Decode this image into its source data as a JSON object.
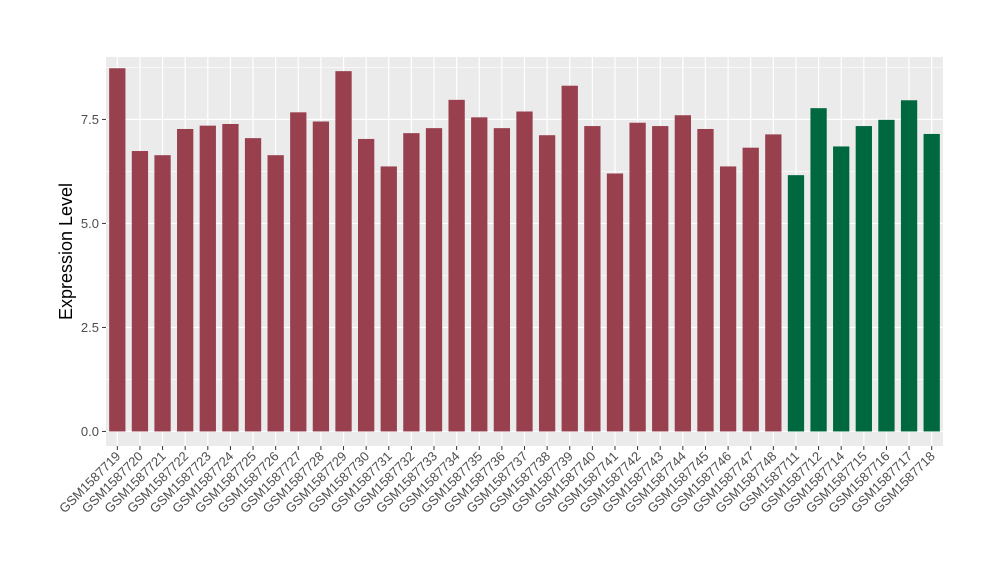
{
  "chart_data": {
    "type": "bar",
    "ylabel": "Expression Level",
    "xlabel": "",
    "ylim": [
      -0.35,
      9.0
    ],
    "yticks": [
      0.0,
      2.5,
      5.0,
      7.5
    ],
    "ytick_labels": [
      "0.0",
      "2.5",
      "5.0",
      "7.5"
    ],
    "grid": true,
    "legend": "none",
    "categories": [
      "GSM1587719",
      "GSM1587720",
      "GSM1587721",
      "GSM1587722",
      "GSM1587723",
      "GSM1587724",
      "GSM1587725",
      "GSM1587726",
      "GSM1587727",
      "GSM1587728",
      "GSM1587729",
      "GSM1587730",
      "GSM1587731",
      "GSM1587732",
      "GSM1587733",
      "GSM1587734",
      "GSM1587735",
      "GSM1587736",
      "GSM1587737",
      "GSM1587738",
      "GSM1587739",
      "GSM1587740",
      "GSM1587741",
      "GSM1587742",
      "GSM1587743",
      "GSM1587744",
      "GSM1587745",
      "GSM1587746",
      "GSM1587747",
      "GSM1587748",
      "GSM1587711",
      "GSM1587712",
      "GSM1587714",
      "GSM1587715",
      "GSM1587716",
      "GSM1587717",
      "GSM1587718"
    ],
    "values": [
      8.73,
      6.74,
      6.64,
      7.27,
      7.35,
      7.39,
      7.05,
      6.64,
      7.67,
      7.45,
      8.66,
      7.03,
      6.37,
      7.17,
      7.29,
      7.97,
      7.55,
      7.29,
      7.69,
      7.12,
      8.31,
      7.34,
      6.2,
      7.42,
      7.34,
      7.6,
      7.27,
      6.37,
      6.82,
      7.14,
      6.16,
      7.77,
      6.85,
      7.34,
      7.49,
      7.96,
      7.15
    ],
    "groups": [
      0,
      0,
      0,
      0,
      0,
      0,
      0,
      0,
      0,
      0,
      0,
      0,
      0,
      0,
      0,
      0,
      0,
      0,
      0,
      0,
      0,
      0,
      0,
      0,
      0,
      0,
      0,
      0,
      0,
      0,
      1,
      1,
      1,
      1,
      1,
      1,
      1
    ],
    "group_colors": [
      "#99404f",
      "#00683f"
    ],
    "panel_background": "#ebebeb",
    "grid_color": "#ffffff"
  }
}
